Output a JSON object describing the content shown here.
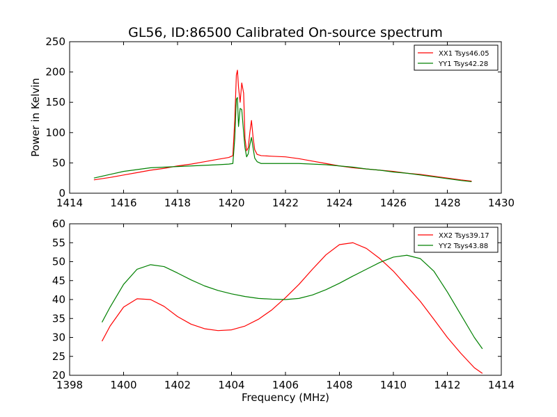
{
  "chart_data": [
    {
      "type": "line",
      "title": "GL56, ID:86500 Calibrated On-source spectrum",
      "xlabel": "",
      "ylabel": "Power in Kelvin",
      "xlim": [
        1414,
        1430
      ],
      "ylim": [
        0,
        250
      ],
      "xticks": [
        1414,
        1416,
        1418,
        1420,
        1422,
        1424,
        1426,
        1428,
        1430
      ],
      "yticks": [
        0,
        50,
        100,
        150,
        200,
        250
      ],
      "legend_position": "top-right",
      "grid": false,
      "series": [
        {
          "name": "XX1 Tsys46.05",
          "color": "#ff0000",
          "x": [
            1414.9,
            1415.5,
            1416,
            1416.5,
            1417,
            1417.5,
            1418,
            1418.5,
            1419,
            1419.5,
            1419.9,
            1420.05,
            1420.12,
            1420.18,
            1420.22,
            1420.26,
            1420.32,
            1420.38,
            1420.45,
            1420.5,
            1420.56,
            1420.62,
            1420.68,
            1420.74,
            1420.8,
            1420.86,
            1420.95,
            1421.1,
            1421.5,
            1422,
            1422.5,
            1423,
            1423.5,
            1424,
            1424.5,
            1425,
            1425.5,
            1426,
            1426.5,
            1427,
            1427.5,
            1428,
            1428.5,
            1428.9
          ],
          "y": [
            22,
            26,
            30,
            34,
            38,
            41,
            45,
            48,
            52,
            56,
            59,
            62,
            120,
            195,
            203,
            175,
            150,
            182,
            165,
            90,
            70,
            75,
            100,
            120,
            92,
            72,
            64,
            62,
            61,
            60,
            57,
            53,
            49,
            45,
            42,
            40,
            38,
            36,
            33,
            31,
            28,
            25,
            22,
            20
          ]
        },
        {
          "name": "YY1 Tsys42.28",
          "color": "#008000",
          "x": [
            1414.9,
            1415.5,
            1416,
            1416.5,
            1417,
            1417.5,
            1418,
            1418.5,
            1419,
            1419.5,
            1419.9,
            1420.05,
            1420.12,
            1420.18,
            1420.22,
            1420.26,
            1420.32,
            1420.38,
            1420.45,
            1420.5,
            1420.56,
            1420.62,
            1420.68,
            1420.74,
            1420.8,
            1420.86,
            1420.95,
            1421.1,
            1421.5,
            1422,
            1422.5,
            1423,
            1423.5,
            1424,
            1424.5,
            1425,
            1425.5,
            1426,
            1426.5,
            1427,
            1427.5,
            1428,
            1428.5,
            1428.9
          ],
          "y": [
            25,
            31,
            36,
            39,
            42,
            43,
            44,
            45,
            46,
            47,
            48,
            49,
            90,
            155,
            158,
            110,
            140,
            138,
            100,
            75,
            60,
            65,
            80,
            92,
            75,
            58,
            52,
            49,
            49,
            49,
            49,
            48,
            47,
            45,
            43,
            40,
            38,
            35,
            33,
            30,
            27,
            24,
            21,
            19
          ]
        }
      ]
    },
    {
      "type": "line",
      "title": "",
      "xlabel": "Frequency (MHz)",
      "ylabel": "",
      "xlim": [
        1398,
        1414
      ],
      "ylim": [
        20,
        60
      ],
      "xticks": [
        1398,
        1400,
        1402,
        1404,
        1406,
        1408,
        1410,
        1412,
        1414
      ],
      "yticks": [
        20,
        25,
        30,
        35,
        40,
        45,
        50,
        55,
        60
      ],
      "legend_position": "top-right",
      "grid": false,
      "series": [
        {
          "name": "XX2 Tsys39.17",
          "color": "#ff0000",
          "x": [
            1399.2,
            1399.5,
            1400,
            1400.5,
            1401,
            1401.5,
            1402,
            1402.5,
            1403,
            1403.5,
            1404,
            1404.5,
            1405,
            1405.5,
            1406,
            1406.5,
            1407,
            1407.5,
            1408,
            1408.5,
            1409,
            1409.5,
            1410,
            1410.5,
            1411,
            1411.5,
            1412,
            1412.5,
            1413,
            1413.3
          ],
          "y": [
            29,
            33,
            38,
            40.2,
            40,
            38.2,
            35.5,
            33.5,
            32.3,
            31.8,
            32,
            33,
            34.8,
            37.3,
            40.5,
            44,
            48,
            51.8,
            54.5,
            55,
            53.5,
            50.8,
            47.5,
            43.5,
            39.5,
            34.8,
            30,
            25.8,
            22,
            20.5
          ]
        },
        {
          "name": "YY2 Tsys43.88",
          "color": "#008000",
          "x": [
            1399.2,
            1399.5,
            1400,
            1400.5,
            1401,
            1401.5,
            1402,
            1402.5,
            1403,
            1403.5,
            1404,
            1404.5,
            1405,
            1405.5,
            1406,
            1406.5,
            1407,
            1407.5,
            1408,
            1408.5,
            1409,
            1409.5,
            1410,
            1410.5,
            1411,
            1411.5,
            1412,
            1412.5,
            1413,
            1413.3
          ],
          "y": [
            34,
            38,
            44,
            48,
            49.2,
            48.7,
            47,
            45.2,
            43.6,
            42.4,
            41.5,
            40.8,
            40.3,
            40.1,
            40,
            40.3,
            41.2,
            42.6,
            44.3,
            46.2,
            48,
            49.8,
            51.2,
            51.7,
            50.8,
            47.5,
            42,
            36,
            30,
            27
          ]
        }
      ]
    }
  ]
}
